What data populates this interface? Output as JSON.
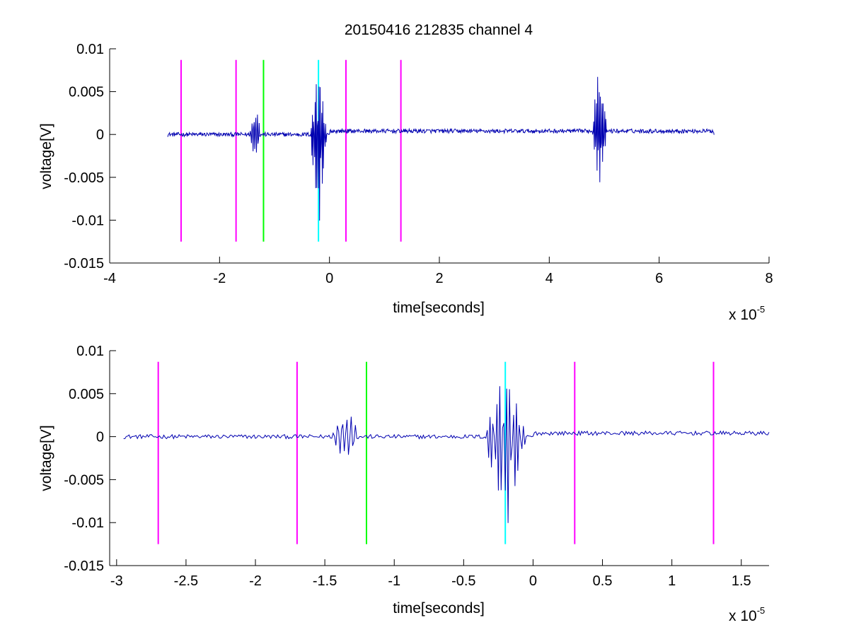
{
  "figure": {
    "title": "20150416 212835 channel 4",
    "background": "#ffffff"
  },
  "colors": {
    "signal": "#0000b0",
    "magenta": "#ff00ff",
    "green": "#00ff00",
    "cyan": "#00ffff",
    "axis": "#000000"
  },
  "chart_data": [
    {
      "type": "line",
      "title": "20150416 212835 channel 4",
      "xlabel": "time[seconds]",
      "ylabel": "voltage[V]",
      "x_exponent_label": "x 10",
      "x_exponent_power": "-5",
      "xlim": [
        -4e-05,
        8e-05
      ],
      "ylim": [
        -0.015,
        0.01
      ],
      "xticks": [
        -4e-05,
        -2e-05,
        0,
        2e-05,
        4e-05,
        6e-05,
        8e-05
      ],
      "xtick_labels": [
        "-4",
        "-2",
        "0",
        "2",
        "4",
        "6",
        "8"
      ],
      "yticks": [
        -0.015,
        -0.01,
        -0.005,
        0,
        0.005,
        0.01
      ],
      "ytick_labels": [
        "-0.015",
        "-0.01",
        "-0.005",
        "0",
        "0.005",
        "0.01"
      ],
      "grid": false,
      "signal": {
        "color": "#0000b0",
        "x_start": -2.95e-05,
        "x_end": 7e-05,
        "noise_amplitude": 0.0003,
        "baseline_segments": [
          {
            "x": [
              -2.95e-05,
              0.0
            ],
            "y": 0.0
          },
          {
            "x": [
              0.0,
              7e-05
            ],
            "y": 0.0004
          }
        ],
        "bursts": [
          {
            "x_start": -1.45e-05,
            "x_end": -1.25e-05,
            "min": -0.003,
            "max": 0.0036
          },
          {
            "x_start": -3.5e-06,
            "x_end": -5e-07,
            "min": -0.0115,
            "max": 0.0079
          },
          {
            "x_start": 4.78e-05,
            "x_end": 5.05e-05,
            "min": -0.0079,
            "max": 0.0077
          }
        ]
      },
      "markers": [
        {
          "x": -2.7e-05,
          "color": "#ff00ff",
          "y_range": [
            -0.0125,
            0.0087
          ]
        },
        {
          "x": -1.7e-05,
          "color": "#ff00ff",
          "y_range": [
            -0.0125,
            0.0087
          ]
        },
        {
          "x": -1.2e-05,
          "color": "#00ff00",
          "y_range": [
            -0.0125,
            0.0087
          ]
        },
        {
          "x": -2e-06,
          "color": "#00ffff",
          "y_range": [
            -0.0125,
            0.0087
          ]
        },
        {
          "x": 3e-06,
          "color": "#ff00ff",
          "y_range": [
            -0.0125,
            0.0087
          ]
        },
        {
          "x": 1.3e-05,
          "color": "#ff00ff",
          "y_range": [
            -0.0125,
            0.0087
          ]
        }
      ]
    },
    {
      "type": "line",
      "title": "",
      "xlabel": "time[seconds]",
      "ylabel": "voltage[V]",
      "x_exponent_label": "x 10",
      "x_exponent_power": "-5",
      "xlim": [
        -3.05e-05,
        1.7e-05
      ],
      "ylim": [
        -0.015,
        0.01
      ],
      "xticks": [
        -3e-05,
        -2.5e-05,
        -2e-05,
        -1.5e-05,
        -1e-05,
        -5e-06,
        0,
        5e-06,
        1e-05,
        1.5e-05
      ],
      "xtick_labels": [
        "-3",
        "-2.5",
        "-2",
        "-1.5",
        "-1",
        "-0.5",
        "0",
        "0.5",
        "1",
        "1.5"
      ],
      "yticks": [
        -0.015,
        -0.01,
        -0.005,
        0,
        0.005,
        0.01
      ],
      "ytick_labels": [
        "-0.015",
        "-0.01",
        "-0.005",
        "0",
        "0.005",
        "0.01"
      ],
      "grid": false,
      "signal": {
        "color": "#0000b0",
        "x_start": -2.95e-05,
        "x_end": 1.7e-05,
        "noise_amplitude": 0.0003,
        "baseline_segments": [
          {
            "x": [
              -2.95e-05,
              0.0
            ],
            "y": 0.0
          },
          {
            "x": [
              0.0,
              1.7e-05
            ],
            "y": 0.0004
          }
        ],
        "bursts": [
          {
            "x_start": -1.45e-05,
            "x_end": -1.25e-05,
            "min": -0.003,
            "max": 0.0036
          },
          {
            "x_start": -3.5e-06,
            "x_end": -5e-07,
            "min": -0.0115,
            "max": 0.0079
          }
        ]
      },
      "markers": [
        {
          "x": -2.7e-05,
          "color": "#ff00ff",
          "y_range": [
            -0.0125,
            0.0087
          ]
        },
        {
          "x": -1.7e-05,
          "color": "#ff00ff",
          "y_range": [
            -0.0125,
            0.0087
          ]
        },
        {
          "x": -1.2e-05,
          "color": "#00ff00",
          "y_range": [
            -0.0125,
            0.0087
          ]
        },
        {
          "x": -2e-06,
          "color": "#00ffff",
          "y_range": [
            -0.0125,
            0.0087
          ]
        },
        {
          "x": 3e-06,
          "color": "#ff00ff",
          "y_range": [
            -0.0125,
            0.0087
          ]
        },
        {
          "x": 1.3e-05,
          "color": "#ff00ff",
          "y_range": [
            -0.0125,
            0.0087
          ]
        }
      ]
    }
  ]
}
